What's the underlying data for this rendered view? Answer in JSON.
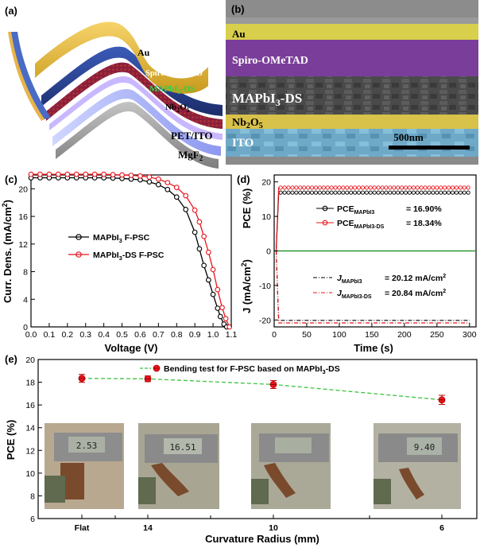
{
  "figure": {
    "panel_a": {
      "label": "(a)",
      "layers": {
        "au": "Au",
        "spiro": "Spiro-OMeTAD",
        "mapbi": "MAPbI",
        "mapbi_sub": "3",
        "mapbi_suffix": "-DS",
        "nb": "Nb",
        "nb_sub1": "2",
        "nb_o": "O",
        "nb_sub2": "5",
        "pet": "PET/ITO",
        "mgf": "MgF",
        "mgf_sub": "2"
      }
    },
    "panel_b": {
      "label": "(b)",
      "layers": {
        "au": "Au",
        "spiro": "Spiro-OMeTAD",
        "mapbi": "MAPbI",
        "mapbi_sub": "3",
        "mapbi_suffix": "-DS",
        "nb": "Nb",
        "nb_sub1": "2",
        "nb_o": "O",
        "nb_sub2": "5",
        "ito": "ITO"
      },
      "scale_bar": "500nm"
    },
    "panel_c": {
      "label": "(c)",
      "legend": [
        {
          "main": "MAPbI",
          "sub": "3",
          "rest": " F-PSC"
        },
        {
          "main": "MAPbI",
          "sub": "3",
          "rest": "-DS F-PSC"
        }
      ]
    },
    "panel_d": {
      "label": "(d)",
      "legend_pce": [
        {
          "sym": "PCE",
          "sub": "MAPbI3",
          "val": "= 16.90%"
        },
        {
          "sym": "PCE",
          "sub": "MAPbI3-DS",
          "val": "= 18.34%"
        }
      ],
      "legend_j": [
        {
          "sym": "J",
          "sub": "MAPbI3",
          "val": "= 20.12 mA/cm",
          "sup": "2"
        },
        {
          "sym": "J",
          "sub": "MAPbI3-DS",
          "val": "= 20.84 mA/cm",
          "sup": "2"
        }
      ]
    },
    "panel_e": {
      "label": "(e)",
      "legend": {
        "main": "Bending test for F-PSC based on MAPbI",
        "sub": "3",
        "rest": "-DS"
      },
      "photo_readouts": [
        "2.53",
        "16.51",
        "",
        "9.40"
      ]
    }
  },
  "chart_data": [
    {
      "type": "line",
      "title": "",
      "xlabel": "Voltage (V)",
      "ylabel": "Curr. Dens. (mA/cm2)",
      "xlim": [
        0.0,
        1.1
      ],
      "ylim": [
        0,
        22
      ],
      "xticks": [
        "0.0",
        "0.1",
        "0.2",
        "0.3",
        "0.4",
        "0.5",
        "0.6",
        "0.7",
        "0.8",
        "0.9",
        "1.0",
        "1.1"
      ],
      "yticks": [
        "0",
        "4",
        "8",
        "12",
        "16",
        "20"
      ],
      "grid": false,
      "legend_position": "center-left",
      "series": [
        {
          "name": "MAPbI3 F-PSC",
          "color": "#000000",
          "x": [
            0,
            0.05,
            0.1,
            0.15,
            0.2,
            0.25,
            0.3,
            0.35,
            0.4,
            0.45,
            0.5,
            0.55,
            0.6,
            0.65,
            0.7,
            0.75,
            0.8,
            0.85,
            0.9,
            0.925,
            0.95,
            0.975,
            1.0,
            1.025,
            1.04,
            1.06,
            1.075
          ],
          "y": [
            21.6,
            21.6,
            21.6,
            21.6,
            21.6,
            21.6,
            21.6,
            21.6,
            21.6,
            21.55,
            21.5,
            21.4,
            21.3,
            21.0,
            20.6,
            19.9,
            18.8,
            17.0,
            13.7,
            11.3,
            8.9,
            6.8,
            4.7,
            2.7,
            1.5,
            0.4,
            0
          ]
        },
        {
          "name": "MAPbI3-DS F-PSC",
          "color": "#e8141b",
          "x": [
            0,
            0.05,
            0.1,
            0.15,
            0.2,
            0.25,
            0.3,
            0.35,
            0.4,
            0.45,
            0.5,
            0.55,
            0.6,
            0.65,
            0.7,
            0.75,
            0.8,
            0.85,
            0.9,
            0.925,
            0.95,
            0.975,
            1.0,
            1.025,
            1.05,
            1.07,
            1.09
          ],
          "y": [
            22.1,
            22.1,
            22.1,
            22.1,
            22.1,
            22.1,
            22.1,
            22.1,
            22.1,
            22.05,
            22.0,
            21.95,
            21.85,
            21.7,
            21.4,
            20.9,
            20.2,
            19.0,
            16.9,
            15.2,
            13.1,
            10.8,
            8.3,
            5.4,
            2.8,
            1.2,
            0
          ]
        }
      ]
    },
    {
      "type": "line",
      "title": "",
      "xlabel": "Time (s)",
      "ylabel_top": "PCE (%)",
      "ylabel_bottom": "J (mA/cm2)",
      "xlim": [
        0,
        310
      ],
      "ylim": [
        -22,
        22
      ],
      "xticks": [
        "0",
        "50",
        "100",
        "150",
        "200",
        "250",
        "300"
      ],
      "yticks": [
        "-20",
        "-10",
        "0",
        "10",
        "20"
      ],
      "grid": false,
      "reference_line": {
        "y": 0,
        "color": "#118a11"
      },
      "series": [
        {
          "name": "PCE MAPbI3",
          "color": "#000000",
          "steady": 16.9,
          "rise_end": 7
        },
        {
          "name": "PCE MAPbI3-DS",
          "color": "#e8141b",
          "steady": 18.34,
          "rise_end": 7
        },
        {
          "name": "J MAPbI3",
          "color": "#000000",
          "steady": -20.12,
          "rise_end": 7
        },
        {
          "name": "J MAPbI3-DS",
          "color": "#e8141b",
          "steady": -20.84,
          "rise_end": 7
        }
      ]
    },
    {
      "type": "scatter",
      "title": "",
      "xlabel": "Curvature Radius (mm)",
      "ylabel": "PCE (%)",
      "ylim": [
        6,
        20
      ],
      "yticks": [
        "6",
        "8",
        "10",
        "12",
        "14",
        "16",
        "18",
        "20"
      ],
      "categories": [
        "Flat",
        "14",
        "10",
        "6"
      ],
      "grid": false,
      "legend_position": "top",
      "series": [
        {
          "name": "Bending test for F-PSC based on MAPbI3-DS",
          "color": "#e8141b",
          "line_color": "#3ec13e",
          "values": [
            18.34,
            18.3,
            17.8,
            16.45
          ],
          "errors": [
            0.35,
            0.25,
            0.35,
            0.4
          ]
        }
      ]
    }
  ],
  "colors": {
    "black_series": "#000000",
    "red_series": "#e8141b",
    "green_ref": "#118a11",
    "green_dash": "#3ec13e"
  }
}
